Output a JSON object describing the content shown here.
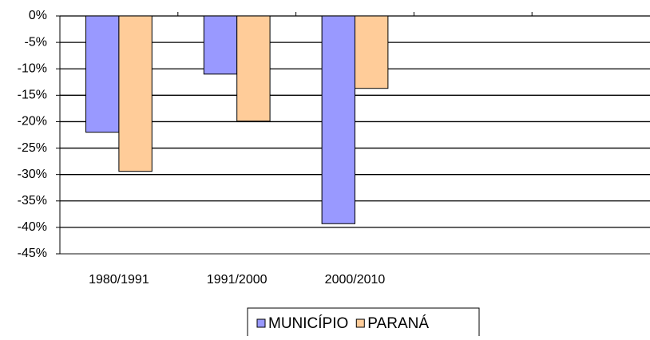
{
  "chart_data": {
    "type": "bar",
    "categories": [
      "1980/1991",
      "1991/2000",
      "2000/2010",
      null,
      null
    ],
    "series": [
      {
        "name": "MUNICÍPIO",
        "color": "#9999ff",
        "values": [
          -22.0,
          -11.0,
          -39.3,
          null,
          null
        ]
      },
      {
        "name": "PARANÁ",
        "color": "#ffcc99",
        "values": [
          -29.4,
          -19.9,
          -13.7,
          null,
          null
        ]
      }
    ],
    "ylim": [
      -45,
      0
    ],
    "yticks": [
      {
        "value": 0,
        "label": "0%"
      },
      {
        "value": -5,
        "label": "-5%"
      },
      {
        "value": -10,
        "label": "-10%"
      },
      {
        "value": -15,
        "label": "-15%"
      },
      {
        "value": -20,
        "label": "-20%"
      },
      {
        "value": -25,
        "label": "-25%"
      },
      {
        "value": -30,
        "label": "-30%"
      },
      {
        "value": -35,
        "label": "-35%"
      },
      {
        "value": -40,
        "label": "-40%"
      },
      {
        "value": -45,
        "label": "-45%"
      }
    ],
    "grid": true,
    "legend": "bottom"
  }
}
